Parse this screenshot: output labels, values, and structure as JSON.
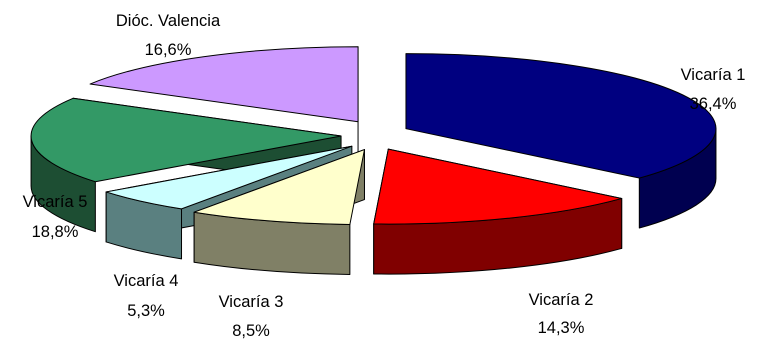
{
  "chart_data": {
    "type": "pie",
    "variant": "exploded-3d",
    "title": "",
    "categories": [
      "Vicaría 1",
      "Vicaría 2",
      "Vicaría 3",
      "Vicaría 4",
      "Vicaría 5",
      "Dióc. Valencia"
    ],
    "values": [
      36.4,
      14.3,
      8.5,
      5.3,
      18.8,
      16.6
    ],
    "value_labels": [
      "36,4%",
      "14,3%",
      "8,5%",
      "5,3%",
      "18,8%",
      "16,6%"
    ],
    "unit": "%",
    "legend": "none",
    "colors": {
      "tops": [
        "#000080",
        "#ff0000",
        "#ffffcc",
        "#ccffff",
        "#339966",
        "#cc99ff"
      ],
      "sides": [
        "#000050",
        "#800000",
        "#808066",
        "#5a8080",
        "#1d4e33",
        "#5c4370"
      ]
    }
  }
}
